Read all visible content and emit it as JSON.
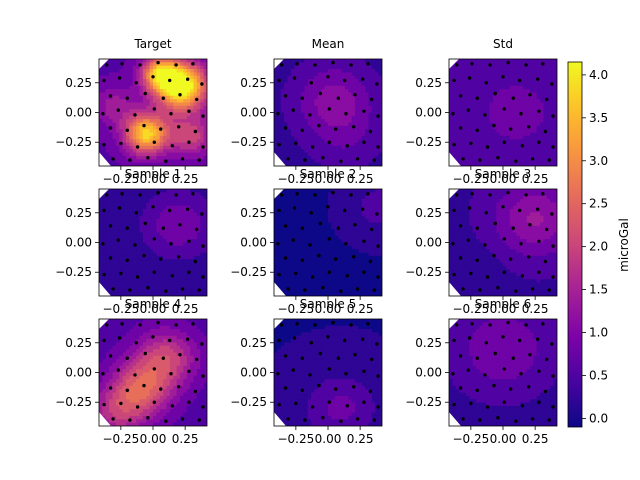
{
  "chart_data": {
    "type": "heatmap",
    "panels": [
      {
        "id": "target",
        "title": "Target",
        "blobs": [
          {
            "x": 0.22,
            "y": 0.22,
            "a": 4.0,
            "s": 0.14
          },
          {
            "x": -0.05,
            "y": -0.18,
            "a": 3.2,
            "s": 0.12
          },
          {
            "x": 0.05,
            "y": 0.33,
            "a": 2.5,
            "s": 0.1
          },
          {
            "x": 0.3,
            "y": -0.2,
            "a": 1.4,
            "s": 0.12
          },
          {
            "x": -0.3,
            "y": 0.05,
            "a": 0.8,
            "s": 0.12
          }
        ],
        "base": 0.6
      },
      {
        "id": "mean",
        "title": "Mean",
        "blobs": [
          {
            "x": 0.05,
            "y": 0.1,
            "a": 0.9,
            "s": 0.22
          },
          {
            "x": 0.15,
            "y": -0.25,
            "a": 0.3,
            "s": 0.2
          }
        ],
        "base": 0.2
      },
      {
        "id": "std",
        "title": "Std",
        "blobs": [
          {
            "x": 0.1,
            "y": 0.0,
            "a": 0.4,
            "s": 0.3
          }
        ],
        "base": 0.35
      },
      {
        "id": "sample-1",
        "title": "Sample 1",
        "blobs": [
          {
            "x": 0.2,
            "y": 0.15,
            "a": 0.8,
            "s": 0.2
          }
        ],
        "base": 0.1
      },
      {
        "id": "sample-2",
        "title": "Sample 2",
        "blobs": [
          {
            "x": 0.4,
            "y": 0.3,
            "a": 0.6,
            "s": 0.12
          }
        ],
        "base": 0.05
      },
      {
        "id": "sample-3",
        "title": "Sample 3",
        "blobs": [
          {
            "x": 0.25,
            "y": 0.2,
            "a": 1.0,
            "s": 0.22
          },
          {
            "x": -0.3,
            "y": -0.3,
            "a": -0.2,
            "s": 0.2
          }
        ],
        "base": 0.3
      },
      {
        "id": "sample-4",
        "title": "Sample 4",
        "blobs": [
          {
            "x": -0.1,
            "y": -0.15,
            "a": 1.8,
            "s": 0.17
          },
          {
            "x": 0.1,
            "y": 0.12,
            "a": 1.5,
            "s": 0.17
          },
          {
            "x": -0.3,
            "y": -0.35,
            "a": 1.0,
            "s": 0.15
          }
        ],
        "base": 0.5
      },
      {
        "id": "sample-5",
        "title": "Sample 5",
        "blobs": [
          {
            "x": 0.1,
            "y": -0.3,
            "a": 0.7,
            "s": 0.2
          }
        ],
        "base": 0.05
      },
      {
        "id": "sample-6",
        "title": "Sample 6",
        "blobs": [
          {
            "x": 0.0,
            "y": 0.2,
            "a": 0.7,
            "s": 0.25
          }
        ],
        "base": 0.25
      }
    ],
    "xlim": [
      -0.42,
      0.42
    ],
    "ylim": [
      -0.45,
      0.45
    ],
    "xticks": [
      -0.25,
      0.0,
      0.25
    ],
    "xtick_labels": [
      "−0.25",
      "0.00",
      "0.25"
    ],
    "yticks": [
      0.25,
      0.0,
      -0.25
    ],
    "ytick_labels": [
      "0.25",
      "0.00",
      "−0.25"
    ],
    "colorbar": {
      "label": "microGal",
      "colormap": "plasma",
      "range": [
        -0.1,
        4.15
      ],
      "ticks": [
        0.0,
        0.5,
        1.0,
        1.5,
        2.0,
        2.5,
        3.0,
        3.5,
        4.0
      ],
      "tick_labels": [
        "0.0",
        "0.5",
        "1.0",
        "1.5",
        "2.0",
        "2.5",
        "3.0",
        "3.5",
        "4.0"
      ]
    },
    "stations": [
      [
        -0.36,
        0.4
      ],
      [
        -0.24,
        0.41
      ],
      [
        -0.1,
        0.4
      ],
      [
        0.04,
        0.42
      ],
      [
        0.18,
        0.4
      ],
      [
        0.31,
        0.41
      ],
      [
        -0.38,
        0.27
      ],
      [
        -0.26,
        0.29
      ],
      [
        -0.13,
        0.25
      ],
      [
        0.0,
        0.3
      ],
      [
        0.13,
        0.27
      ],
      [
        0.27,
        0.28
      ],
      [
        0.38,
        0.24
      ],
      [
        -0.33,
        0.14
      ],
      [
        -0.2,
        0.12
      ],
      [
        -0.06,
        0.16
      ],
      [
        0.08,
        0.12
      ],
      [
        0.21,
        0.15
      ],
      [
        0.34,
        0.11
      ],
      [
        -0.39,
        -0.01
      ],
      [
        -0.27,
        0.02
      ],
      [
        -0.14,
        -0.02
      ],
      [
        0.01,
        0.03
      ],
      [
        0.14,
        -0.01
      ],
      [
        0.28,
        0.01
      ],
      [
        0.39,
        -0.03
      ],
      [
        -0.33,
        -0.13
      ],
      [
        -0.2,
        -0.15
      ],
      [
        -0.07,
        -0.11
      ],
      [
        0.06,
        -0.14
      ],
      [
        0.2,
        -0.12
      ],
      [
        0.33,
        -0.16
      ],
      [
        -0.38,
        -0.27
      ],
      [
        -0.25,
        -0.26
      ],
      [
        -0.12,
        -0.29
      ],
      [
        0.01,
        -0.25
      ],
      [
        0.15,
        -0.28
      ],
      [
        0.28,
        -0.25
      ],
      [
        0.39,
        -0.29
      ],
      [
        -0.31,
        -0.39
      ],
      [
        -0.18,
        -0.4
      ],
      [
        -0.04,
        -0.38
      ],
      [
        0.1,
        -0.41
      ],
      [
        0.23,
        -0.39
      ],
      [
        0.36,
        -0.4
      ]
    ]
  }
}
